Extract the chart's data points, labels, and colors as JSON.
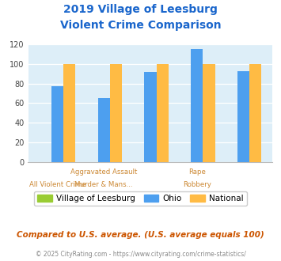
{
  "title_line1": "2019 Village of Leesburg",
  "title_line2": "Violent Crime Comparison",
  "leesburg": [
    0,
    0,
    0,
    0,
    0
  ],
  "ohio": [
    77,
    65,
    92,
    115,
    93
  ],
  "national": [
    100,
    100,
    100,
    100,
    100
  ],
  "leesburg_color": "#99cc33",
  "ohio_color": "#4d9fef",
  "national_color": "#ffbb44",
  "ylim": [
    0,
    120
  ],
  "yticks": [
    0,
    20,
    40,
    60,
    80,
    100,
    120
  ],
  "bg_color": "#ddeef8",
  "title_color": "#1a66cc",
  "xlabel_color": "#cc8833",
  "footer_color": "#cc5500",
  "copyright_color": "#888888",
  "footer_text": "Compared to U.S. average. (U.S. average equals 100)",
  "copyright_text": "© 2025 CityRating.com - https://www.cityrating.com/crime-statistics/",
  "legend_labels": [
    "Village of Leesburg",
    "Ohio",
    "National"
  ],
  "x_top_labels": [
    "",
    "Aggravated Assault",
    "",
    "Rape",
    ""
  ],
  "x_bottom_labels": [
    "All Violent Crime",
    "Murder & Mans...",
    "",
    "Robbery",
    ""
  ]
}
